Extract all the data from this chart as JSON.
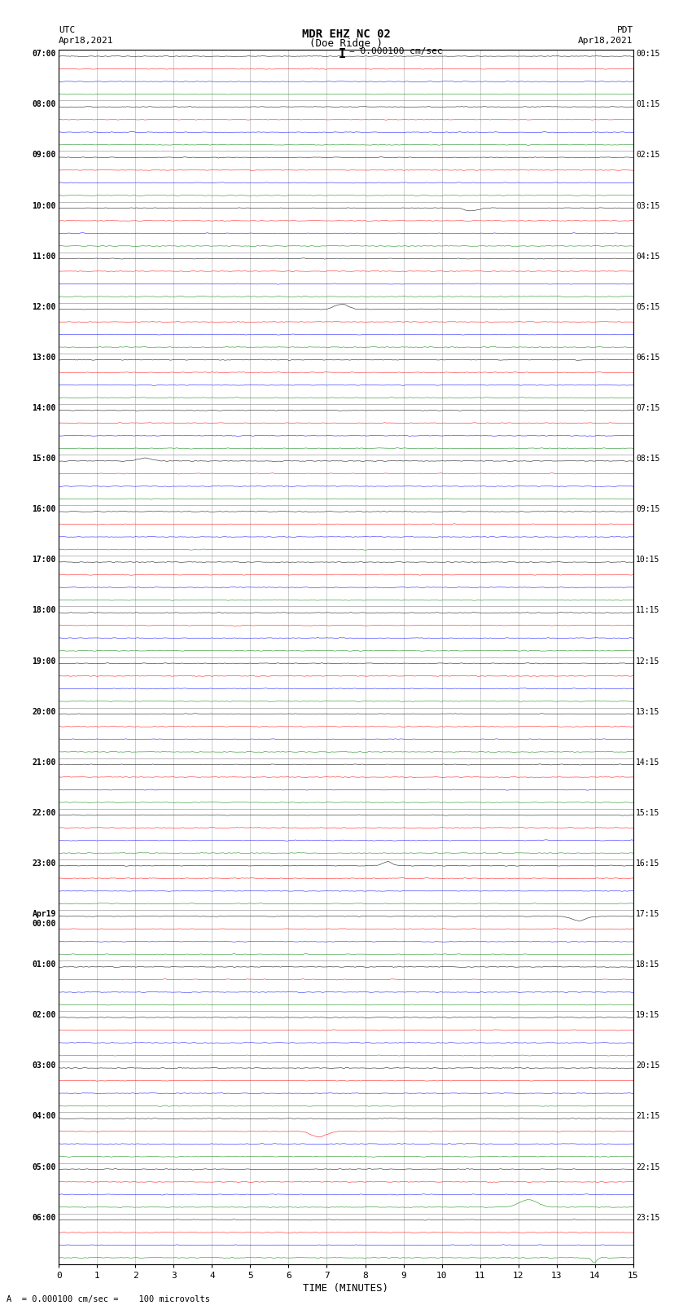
{
  "title_line1": "MDR EHZ NC 02",
  "title_line2": "(Doe Ridge )",
  "scale_label": "= 0.000100 cm/sec",
  "left_header1": "UTC",
  "left_header2": "Apr18,2021",
  "right_header1": "PDT",
  "right_header2": "Apr18,2021",
  "bottom_label": "A  = 0.000100 cm/sec =    100 microvolts",
  "xlabel": "TIME (MINUTES)",
  "left_times": [
    "07:00",
    "08:00",
    "09:00",
    "10:00",
    "11:00",
    "12:00",
    "13:00",
    "14:00",
    "15:00",
    "16:00",
    "17:00",
    "18:00",
    "19:00",
    "20:00",
    "21:00",
    "22:00",
    "23:00",
    "Apr19\n00:00",
    "01:00",
    "02:00",
    "03:00",
    "04:00",
    "05:00",
    "06:00"
  ],
  "right_times": [
    "00:15",
    "01:15",
    "02:15",
    "03:15",
    "04:15",
    "05:15",
    "06:15",
    "07:15",
    "08:15",
    "09:15",
    "10:15",
    "11:15",
    "12:15",
    "13:15",
    "14:15",
    "15:15",
    "16:15",
    "17:15",
    "18:15",
    "19:15",
    "20:15",
    "21:15",
    "22:15",
    "23:15"
  ],
  "num_hours": 24,
  "traces_per_hour": 4,
  "trace_colors": [
    "black",
    "red",
    "blue",
    "green"
  ],
  "bg_color": "white",
  "xticks": [
    0,
    1,
    2,
    3,
    4,
    5,
    6,
    7,
    8,
    9,
    10,
    11,
    12,
    13,
    14,
    15
  ],
  "xlim": [
    0,
    15
  ],
  "noise_scale": 0.03,
  "fig_width": 8.5,
  "fig_height": 16.13
}
